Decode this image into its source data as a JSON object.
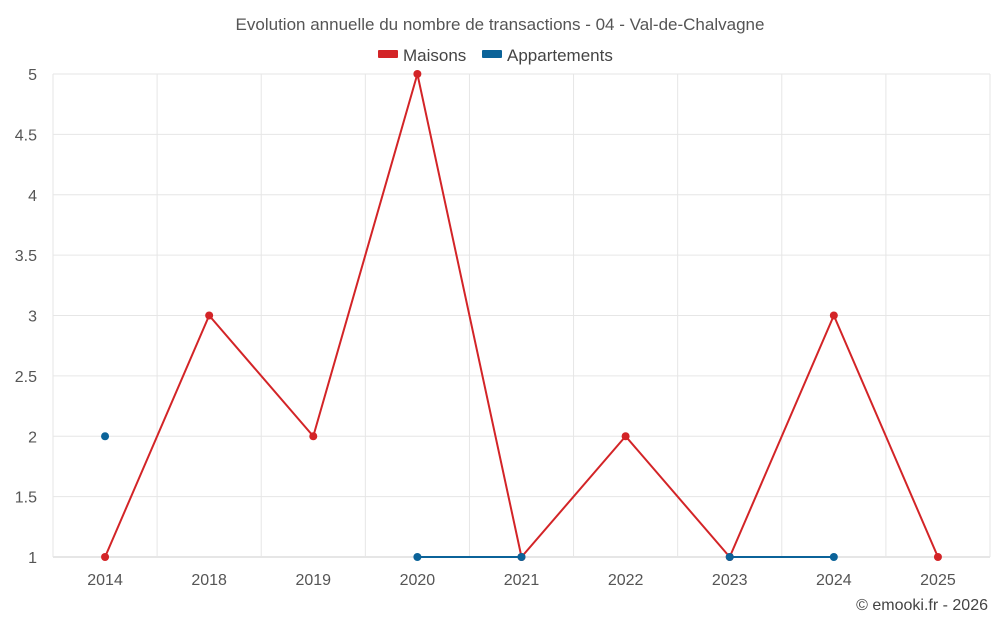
{
  "chart_data": {
    "type": "line",
    "title": "Evolution annuelle du nombre de transactions - 04 - Val-de-Chalvagne",
    "categories": [
      "2014",
      "2018",
      "2019",
      "2020",
      "2021",
      "2022",
      "2023",
      "2024",
      "2025"
    ],
    "ylim": [
      1,
      5
    ],
    "yticks": [
      "1",
      "1.5",
      "2",
      "2.5",
      "3",
      "3.5",
      "4",
      "4.5",
      "5"
    ],
    "grid": true,
    "legend_position": "top-center",
    "series": [
      {
        "name": "Maisons",
        "color": "#d32427",
        "values": [
          1,
          3,
          2,
          5,
          1,
          2,
          1,
          3,
          1
        ]
      },
      {
        "name": "Appartements",
        "color": "#0b6399",
        "values": [
          2,
          null,
          null,
          1,
          1,
          null,
          1,
          1,
          null
        ]
      }
    ],
    "credit": "© emooki.fr - 2026"
  }
}
